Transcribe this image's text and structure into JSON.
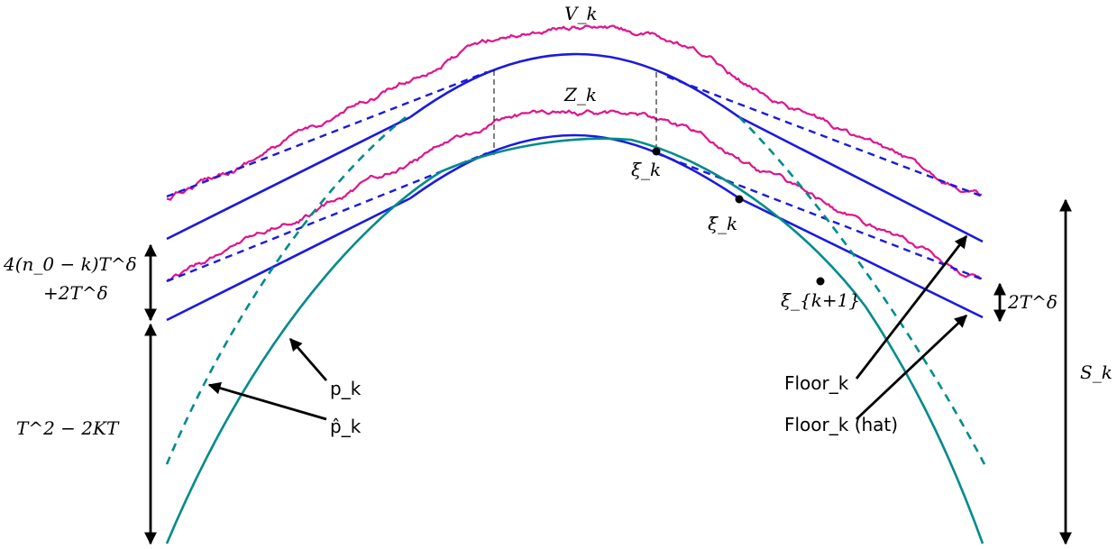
{
  "labels": {
    "V_k": "V_k",
    "Z_k": "Z_k",
    "xi_k": "ξ_k",
    "xi_bar_k": "ξ̄_k",
    "xi_k_plus_1": "ξ_{k+1}",
    "p_k": "p_k",
    "p_hat_k": "p̂_k",
    "floor_k": "Floor_k",
    "floor_hat_k": "Floor_k (hat)",
    "gap_top_line1": "4(n_0 − k)T^δ",
    "gap_top_line2": "+2T^δ",
    "gap_bottom": "T^2 − 2KT",
    "two_T_delta": "2T^δ",
    "S_k": "S_k"
  },
  "colors": {
    "brownian": "#e0128c",
    "tangent": "#1a1adf",
    "parabola": "#008b8b",
    "arrow": "#000000"
  }
}
